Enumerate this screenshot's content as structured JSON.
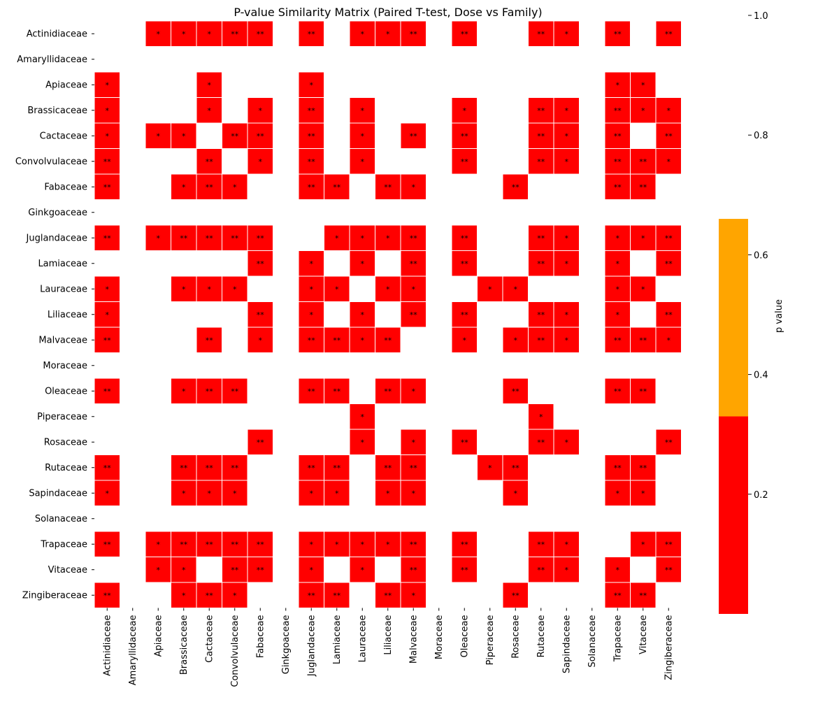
{
  "chart_data": {
    "type": "heatmap",
    "title": "P-value Similarity Matrix (Paired T-test, Dose vs Family)",
    "colorbar_label": "p value",
    "colorbar_ticks": [
      "0.2",
      "0.4",
      "0.6",
      "0.8",
      "1.0"
    ],
    "colorbar_range": [
      0.0,
      1.0
    ],
    "colorbar_bands": [
      {
        "from": 0.0,
        "to": 0.33,
        "color": "#ff0000"
      },
      {
        "from": 0.33,
        "to": 0.66,
        "color": "#ffa500"
      }
    ],
    "cell_color": "#ff0000",
    "families": [
      "Actinidiaceae",
      "Amaryllidaceae",
      "Apiaceae",
      "Brassicaceae",
      "Cactaceae",
      "Convolvulaceae",
      "Fabaceae",
      "Ginkgoaceae",
      "Juglandaceae",
      "Lamiaceae",
      "Lauraceae",
      "Liliaceae",
      "Malvaceae",
      "Moraceae",
      "Oleaceae",
      "Piperaceae",
      "Rosaceae",
      "Rutaceae",
      "Sapindaceae",
      "Solanaceae",
      "Trapaceae",
      "Vitaceae",
      "Zingiberaceae"
    ],
    "matrix": [
      [
        "",
        "",
        "*",
        "*",
        "*",
        "**",
        "**",
        "",
        "**",
        "",
        "*",
        "*",
        "**",
        "",
        "**",
        "",
        "",
        "**",
        "*",
        "",
        "**",
        "",
        "**"
      ],
      [
        "",
        "",
        "",
        "",
        "",
        "",
        "",
        "",
        "",
        "",
        "",
        "",
        "",
        "",
        "",
        "",
        "",
        "",
        "",
        "",
        "",
        "",
        ""
      ],
      [
        "*",
        "",
        "",
        "",
        "*",
        "",
        "",
        "",
        "*",
        "",
        "",
        "",
        "",
        "",
        "",
        "",
        "",
        "",
        "",
        "",
        "*",
        "*",
        ""
      ],
      [
        "*",
        "",
        "",
        "",
        "*",
        "",
        "*",
        "",
        "**",
        "",
        "*",
        "",
        "",
        "",
        "*",
        "",
        "",
        "**",
        "*",
        "",
        "**",
        "*",
        "*"
      ],
      [
        "*",
        "",
        "*",
        "*",
        "",
        "**",
        "**",
        "",
        "**",
        "",
        "*",
        "",
        "**",
        "",
        "**",
        "",
        "",
        "**",
        "*",
        "",
        "**",
        "",
        "**"
      ],
      [
        "**",
        "",
        "",
        "",
        "**",
        "",
        "*",
        "",
        "**",
        "",
        "*",
        "",
        "",
        "",
        "**",
        "",
        "",
        "**",
        "*",
        "",
        "**",
        "**",
        "*"
      ],
      [
        "**",
        "",
        "",
        "*",
        "**",
        "*",
        "",
        "",
        "**",
        "**",
        "",
        "**",
        "*",
        "",
        "",
        "",
        "**",
        "",
        "",
        "",
        "**",
        "**",
        ""
      ],
      [
        "",
        "",
        "",
        "",
        "",
        "",
        "",
        "",
        "",
        "",
        "",
        "",
        "",
        "",
        "",
        "",
        "",
        "",
        "",
        "",
        "",
        "",
        ""
      ],
      [
        "**",
        "",
        "*",
        "**",
        "**",
        "**",
        "**",
        "",
        "",
        "*",
        "*",
        "*",
        "**",
        "",
        "**",
        "",
        "",
        "**",
        "*",
        "",
        "*",
        "*",
        "**"
      ],
      [
        "",
        "",
        "",
        "",
        "",
        "",
        "**",
        "",
        "*",
        "",
        "*",
        "",
        "**",
        "",
        "**",
        "",
        "",
        "**",
        "*",
        "",
        "*",
        "",
        "**"
      ],
      [
        "*",
        "",
        "",
        "*",
        "*",
        "*",
        "",
        "",
        "*",
        "*",
        "",
        "*",
        "*",
        "",
        "",
        "*",
        "*",
        "",
        "",
        "",
        "*",
        "*",
        ""
      ],
      [
        "*",
        "",
        "",
        "",
        "",
        "",
        "**",
        "",
        "*",
        "",
        "*",
        "",
        "**",
        "",
        "**",
        "",
        "",
        "**",
        "*",
        "",
        "*",
        "",
        "**"
      ],
      [
        "**",
        "",
        "",
        "",
        "**",
        "",
        "*",
        "",
        "**",
        "**",
        "*",
        "**",
        "",
        "",
        "*",
        "",
        "*",
        "**",
        "*",
        "",
        "**",
        "**",
        "*"
      ],
      [
        "",
        "",
        "",
        "",
        "",
        "",
        "",
        "",
        "",
        "",
        "",
        "",
        "",
        "",
        "",
        "",
        "",
        "",
        "",
        "",
        "",
        "",
        ""
      ],
      [
        "**",
        "",
        "",
        "*",
        "**",
        "**",
        "",
        "",
        "**",
        "**",
        "",
        "**",
        "*",
        "",
        "",
        "",
        "**",
        "",
        "",
        "",
        "**",
        "**",
        ""
      ],
      [
        "",
        "",
        "",
        "",
        "",
        "",
        "",
        "",
        "",
        "",
        "*",
        "",
        "",
        "",
        "",
        "",
        "",
        "*",
        "",
        "",
        "",
        "",
        ""
      ],
      [
        "",
        "",
        "",
        "",
        "",
        "",
        "**",
        "",
        "",
        "",
        "*",
        "",
        "*",
        "",
        "**",
        "",
        "",
        "**",
        "*",
        "",
        "",
        "",
        "**"
      ],
      [
        "**",
        "",
        "",
        "**",
        "**",
        "**",
        "",
        "",
        "**",
        "**",
        "",
        "**",
        "**",
        "",
        "",
        "*",
        "**",
        "",
        "",
        "",
        "**",
        "**",
        ""
      ],
      [
        "*",
        "",
        "",
        "*",
        "*",
        "*",
        "",
        "",
        "*",
        "*",
        "",
        "*",
        "*",
        "",
        "",
        "",
        "*",
        "",
        "",
        "",
        "*",
        "*",
        ""
      ],
      [
        "",
        "",
        "",
        "",
        "",
        "",
        "",
        "",
        "",
        "",
        "",
        "",
        "",
        "",
        "",
        "",
        "",
        "",
        "",
        "",
        "",
        "",
        ""
      ],
      [
        "**",
        "",
        "*",
        "**",
        "**",
        "**",
        "**",
        "",
        "*",
        "*",
        "*",
        "*",
        "**",
        "",
        "**",
        "",
        "",
        "**",
        "*",
        "",
        "",
        "*",
        "**"
      ],
      [
        "",
        "",
        "*",
        "*",
        "",
        "**",
        "**",
        "",
        "*",
        "",
        "*",
        "",
        "**",
        "",
        "**",
        "",
        "",
        "**",
        "*",
        "",
        "*",
        "",
        "**"
      ],
      [
        "**",
        "",
        "",
        "*",
        "**",
        "*",
        "",
        "",
        "**",
        "**",
        "",
        "**",
        "*",
        "",
        "",
        "",
        "**",
        "",
        "",
        "",
        "**",
        "**",
        ""
      ]
    ]
  }
}
